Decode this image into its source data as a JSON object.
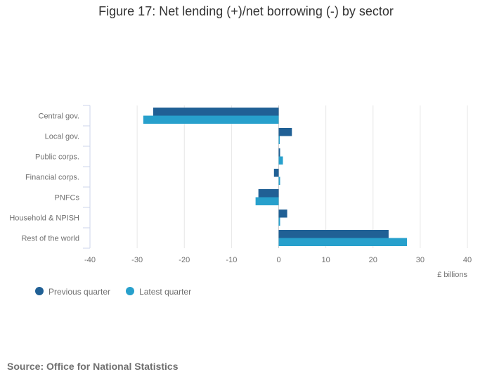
{
  "chart_data": {
    "type": "bar",
    "orientation": "horizontal",
    "title": "Figure 17: Net lending (+)/net borrowing (-) by sector",
    "xlabel": "£ billions",
    "xlim": [
      -40,
      40
    ],
    "xticks": [
      -40,
      -30,
      -20,
      -10,
      0,
      10,
      20,
      30,
      40
    ],
    "categories": [
      "Central gov.",
      "Local gov.",
      "Public corps.",
      "Financial corps.",
      "PNFCs",
      "Household & NPISH",
      "Rest of the world"
    ],
    "series": [
      {
        "name": "Previous quarter",
        "color": "#206095",
        "values": [
          -26.6,
          2.8,
          0.3,
          -1.0,
          -4.3,
          1.8,
          23.3
        ]
      },
      {
        "name": "Latest quarter",
        "color": "#27a0cc",
        "values": [
          -28.7,
          0.2,
          0.9,
          0.3,
          -4.9,
          0.3,
          27.2
        ]
      }
    ],
    "grid": true,
    "legend_position": "bottom-left"
  },
  "source": "Source: Office for National Statistics"
}
